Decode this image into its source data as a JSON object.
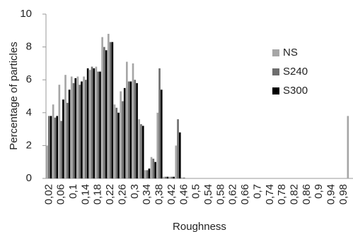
{
  "chart_data": {
    "type": "bar",
    "x_label": "Roughness",
    "y_label": "Percentage of particles",
    "categories": [
      "0,02",
      null,
      "0,06",
      null,
      "0,1",
      null,
      "0,14",
      null,
      "0,18",
      null,
      "0,22",
      null,
      "0,26",
      null,
      "0,3",
      null,
      "0,34",
      null,
      "0,38",
      null,
      "0,42",
      null,
      "0,46",
      null,
      "0,5",
      null,
      "0,54",
      null,
      "0,58",
      null,
      "0,62",
      null,
      "0,66",
      null,
      "0,7",
      null,
      "0,74",
      null,
      "0,78",
      null,
      "0,82",
      null,
      "0,86",
      null,
      "0,9",
      null,
      "0,94",
      null,
      "0,98",
      null
    ],
    "series": [
      {
        "name": "NS",
        "color": "#a6a6a6",
        "values": [
          2.0,
          4.5,
          5.7,
          6.3,
          6.2,
          6.2,
          6.2,
          6.6,
          6.8,
          8.6,
          8.8,
          4.5,
          5.3,
          7.1,
          7.0,
          3.6,
          0.5,
          1.3,
          4.0,
          0.1,
          0.1,
          2.0,
          0.05,
          0,
          0,
          0,
          0,
          0,
          0,
          0,
          0,
          0,
          0,
          0,
          0,
          0,
          0,
          0,
          0,
          0,
          0,
          0,
          0,
          0,
          0,
          0,
          0,
          0,
          0,
          3.8
        ]
      },
      {
        "name": "S240",
        "color": "#6e6e6e",
        "values": [
          3.8,
          3.7,
          3.5,
          4.6,
          5.8,
          5.7,
          6.0,
          6.8,
          6.5,
          8.0,
          8.3,
          4.3,
          4.7,
          5.9,
          6.0,
          3.3,
          0.5,
          1.2,
          6.7,
          0.1,
          0.1,
          3.6,
          0.05,
          0,
          0,
          0,
          0,
          0,
          0,
          0,
          0,
          0,
          0,
          0,
          0,
          0,
          0,
          0,
          0,
          0,
          0,
          0,
          0,
          0,
          0,
          0,
          0,
          0,
          0,
          0
        ]
      },
      {
        "name": "S300",
        "color": "#000000",
        "values": [
          3.8,
          3.8,
          4.8,
          5.4,
          6.1,
          5.9,
          6.7,
          6.7,
          6.5,
          7.8,
          8.3,
          4.0,
          5.5,
          5.9,
          5.8,
          3.2,
          0.6,
          1.0,
          5.4,
          0.1,
          0.1,
          2.8,
          0,
          0,
          0,
          0,
          0,
          0,
          0,
          0,
          0,
          0,
          0,
          0,
          0,
          0,
          0,
          0,
          0,
          0,
          0,
          0,
          0,
          0,
          0,
          0,
          0,
          0,
          0,
          0
        ]
      }
    ],
    "ylim": [
      0,
      10
    ],
    "yticks": [
      0,
      2,
      4,
      6,
      8,
      10
    ],
    "grid": false,
    "legend": "right"
  }
}
